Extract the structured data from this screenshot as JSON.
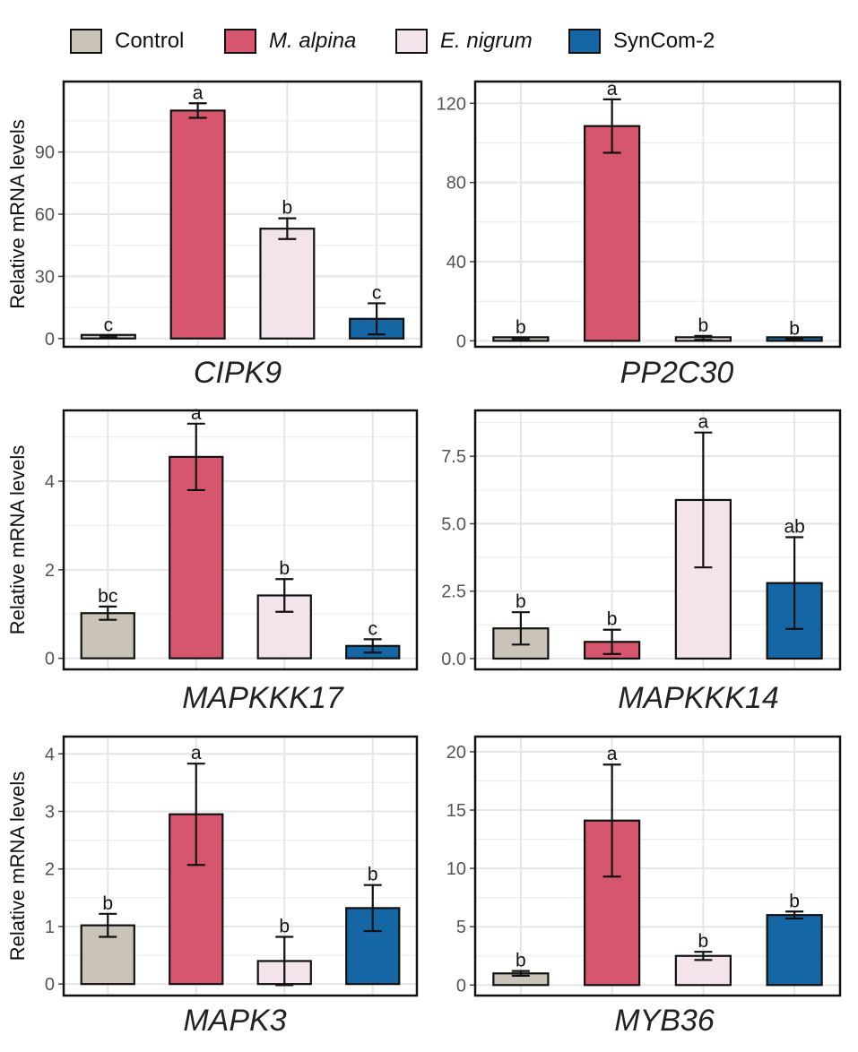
{
  "legend": {
    "items": [
      {
        "label": "Control",
        "color": "#C9C3B8",
        "italic": false
      },
      {
        "label": "M. alpina",
        "color": "#D6566E",
        "italic": true
      },
      {
        "label": "E. nigrum",
        "color": "#F2E4EA",
        "italic": true
      },
      {
        "label": "SynCom-2",
        "color": "#1566A4",
        "italic": false
      }
    ]
  },
  "ylabel": "Relative mRNA levels",
  "chart_data": [
    {
      "type": "bar",
      "title": "CIPK9",
      "ylabel": "Relative mRNA levels",
      "categories": [
        "Control",
        "M. alpina",
        "E. nigrum",
        "SynCom-2"
      ],
      "values": [
        1,
        110,
        53,
        9.5
      ],
      "errors": [
        0.5,
        3.5,
        5,
        7.5
      ],
      "letters": [
        "c",
        "a",
        "b",
        "c"
      ],
      "ylim": [
        -4,
        124
      ],
      "yticks": [
        0,
        30,
        60,
        90
      ]
    },
    {
      "type": "bar",
      "title": "PP2C30",
      "ylabel": "",
      "categories": [
        "Control",
        "M. alpina",
        "E. nigrum",
        "SynCom-2"
      ],
      "values": [
        1,
        108.5,
        1.5,
        0.5
      ],
      "errors": [
        0.5,
        13.5,
        1,
        0.3
      ],
      "letters": [
        "b",
        "a",
        "b",
        "b"
      ],
      "ylim": [
        -3,
        131
      ],
      "yticks": [
        0,
        40,
        80,
        120
      ]
    },
    {
      "type": "bar",
      "title": "MAPKKK17",
      "ylabel": "Relative mRNA levels",
      "categories": [
        "Control",
        "M. alpina",
        "E. nigrum",
        "SynCom-2"
      ],
      "values": [
        1.02,
        4.55,
        1.42,
        0.28
      ],
      "errors": [
        0.15,
        0.75,
        0.37,
        0.15
      ],
      "letters": [
        "bc",
        "a",
        "b",
        "c"
      ],
      "ylim": [
        -0.25,
        5.6
      ],
      "yticks": [
        0,
        2,
        4
      ]
    },
    {
      "type": "bar",
      "title": "MAPKKK14",
      "ylabel": "",
      "categories": [
        "Control",
        "M. alpina",
        "E. nigrum",
        "SynCom-2"
      ],
      "values": [
        1.12,
        0.62,
        5.88,
        2.8
      ],
      "errors": [
        0.6,
        0.45,
        2.5,
        1.7
      ],
      "letters": [
        "b",
        "b",
        "a",
        "ab"
      ],
      "ylim": [
        -0.4,
        9.2
      ],
      "yticks": [
        0.0,
        2.5,
        5.0,
        7.5
      ],
      "tickDecimals": 1
    },
    {
      "type": "bar",
      "title": "MAPK3",
      "ylabel": "Relative mRNA levels",
      "categories": [
        "Control",
        "M. alpina",
        "E. nigrum",
        "SynCom-2"
      ],
      "values": [
        1.02,
        2.95,
        0.4,
        1.32
      ],
      "errors": [
        0.2,
        0.88,
        0.42,
        0.4
      ],
      "letters": [
        "b",
        "a",
        "b",
        "b"
      ],
      "ylim": [
        -0.2,
        4.3
      ],
      "yticks": [
        0,
        1,
        2,
        3,
        4
      ]
    },
    {
      "type": "bar",
      "title": "MYB36",
      "ylabel": "",
      "categories": [
        "Control",
        "M. alpina",
        "E. nigrum",
        "SynCom-2"
      ],
      "values": [
        1.0,
        14.1,
        2.5,
        6.0
      ],
      "errors": [
        0.2,
        4.8,
        0.35,
        0.3
      ],
      "letters": [
        "b",
        "a",
        "b",
        "b"
      ],
      "ylim": [
        -0.9,
        21.3
      ],
      "yticks": [
        0,
        5,
        10,
        15,
        20
      ]
    }
  ]
}
